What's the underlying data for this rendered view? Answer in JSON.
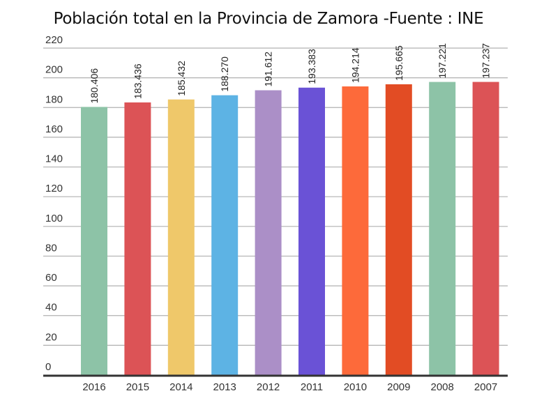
{
  "chart_data": {
    "type": "bar",
    "title": "Población total en la Provincia de Zamora -Fuente : INE",
    "xlabel": "",
    "ylabel": "",
    "categories": [
      "2016",
      "2015",
      "2014",
      "2013",
      "2012",
      "2011",
      "2010",
      "2009",
      "2008",
      "2007"
    ],
    "values": [
      180.406,
      183.436,
      185.432,
      188.27,
      191.612,
      193.383,
      194.214,
      195.665,
      197.221,
      197.237
    ],
    "data_labels": [
      "180.406",
      "183.436",
      "185.432",
      "188.270",
      "191.612",
      "193.383",
      "194.214",
      "195.665",
      "197.221",
      "197.237"
    ],
    "colors": [
      "#8dc3a7",
      "#dc5356",
      "#efc86a",
      "#5db3e4",
      "#ab8fc7",
      "#6a52d6",
      "#fd6a3a",
      "#e24c24",
      "#8dc3a7",
      "#dc5356"
    ],
    "ylim": [
      0,
      220
    ],
    "yticks": [
      0,
      20,
      40,
      60,
      80,
      100,
      120,
      140,
      160,
      180,
      200,
      220
    ],
    "grid": true,
    "legend": "none"
  }
}
